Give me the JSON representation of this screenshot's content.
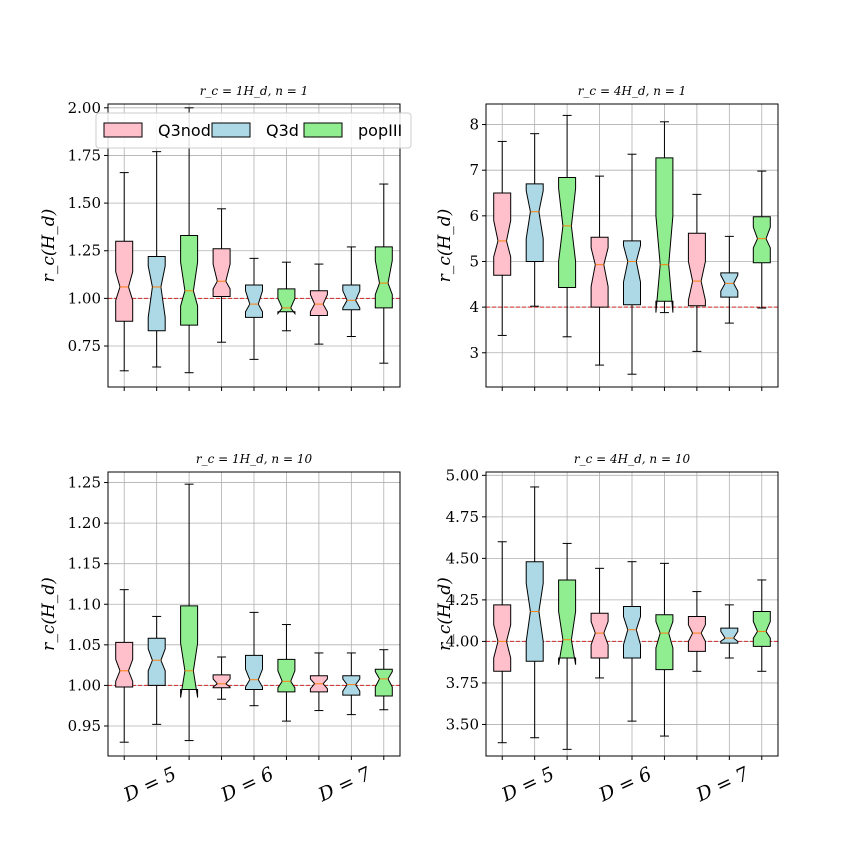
{
  "legend": [
    {
      "label": "Q3nod",
      "color": "#ffc0cb"
    },
    {
      "label": "Q3d",
      "color": "#add8e6"
    },
    {
      "label": "popIII",
      "color": "#90ee90"
    }
  ],
  "x_groups": [
    "D = 5",
    "D = 6",
    "D = 7"
  ],
  "colors": {
    "reference": "#d62728",
    "median": "#ff7f0e",
    "grid": "#b0b0b0"
  },
  "chart_data": [
    {
      "type": "box",
      "title": "r_c = 1H_d, n = 1",
      "ylabel": "r_c(H_d)",
      "reference_y": 1.0,
      "ylim": [
        0.535,
        2.02
      ],
      "yticks": [
        0.75,
        1.0,
        1.25,
        1.5,
        1.75,
        2.0
      ],
      "ytick_labels": [
        "0.75",
        "1.00",
        "1.25",
        "1.50",
        "1.75",
        "2.00"
      ],
      "boxes": [
        {
          "group": "D = 5",
          "series": "Q3nod",
          "wlo": 0.62,
          "q1": 0.88,
          "med": 1.06,
          "q3": 1.3,
          "whi": 1.66,
          "nlo": 0.99,
          "nhi": 1.14
        },
        {
          "group": "D = 5",
          "series": "Q3d",
          "wlo": 0.64,
          "q1": 0.83,
          "med": 1.06,
          "q3": 1.22,
          "whi": 1.77,
          "nlo": 0.9,
          "nhi": 1.17
        },
        {
          "group": "D = 5",
          "series": "popIII",
          "wlo": 0.61,
          "q1": 0.86,
          "med": 1.04,
          "q3": 1.33,
          "whi": 2.0,
          "nlo": 0.96,
          "nhi": 1.19
        },
        {
          "group": "D = 6",
          "series": "Q3nod",
          "wlo": 0.77,
          "q1": 1.01,
          "med": 1.09,
          "q3": 1.26,
          "whi": 1.47,
          "nlo": 1.05,
          "nhi": 1.18
        },
        {
          "group": "D = 6",
          "series": "Q3d",
          "wlo": 0.68,
          "q1": 0.9,
          "med": 0.97,
          "q3": 1.07,
          "whi": 1.21,
          "nlo": 0.93,
          "nhi": 1.04
        },
        {
          "group": "D = 6",
          "series": "popIII",
          "wlo": 0.83,
          "q1": 0.93,
          "med": 0.95,
          "q3": 1.05,
          "whi": 1.19,
          "nlo": 0.92,
          "nhi": 1.0
        },
        {
          "group": "D = 7",
          "series": "Q3nod",
          "wlo": 0.76,
          "q1": 0.91,
          "med": 0.97,
          "q3": 1.04,
          "whi": 1.18,
          "nlo": 0.93,
          "nhi": 1.02
        },
        {
          "group": "D = 7",
          "series": "Q3d",
          "wlo": 0.8,
          "q1": 0.94,
          "med": 0.99,
          "q3": 1.07,
          "whi": 1.27,
          "nlo": 0.95,
          "nhi": 1.04
        },
        {
          "group": "D = 7",
          "series": "popIII",
          "wlo": 0.66,
          "q1": 0.95,
          "med": 1.08,
          "q3": 1.27,
          "whi": 1.6,
          "nlo": 1.02,
          "nhi": 1.2
        }
      ]
    },
    {
      "type": "box",
      "title": "r_c = 4H_d, n = 1",
      "ylabel": "r_c(H_d)",
      "reference_y": 4.0,
      "ylim": [
        2.25,
        8.45
      ],
      "yticks": [
        3,
        4,
        5,
        6,
        7,
        8
      ],
      "ytick_labels": [
        "3",
        "4",
        "5",
        "6",
        "7",
        "8"
      ],
      "boxes": [
        {
          "group": "D = 5",
          "series": "Q3nod",
          "wlo": 3.38,
          "q1": 4.7,
          "med": 5.45,
          "q3": 6.5,
          "whi": 7.63,
          "nlo": 5.1,
          "nhi": 5.9
        },
        {
          "group": "D = 5",
          "series": "Q3d",
          "wlo": 4.02,
          "q1": 5.0,
          "med": 6.09,
          "q3": 6.7,
          "whi": 7.8,
          "nlo": 5.5,
          "nhi": 6.55
        },
        {
          "group": "D = 5",
          "series": "popIII",
          "wlo": 3.35,
          "q1": 4.43,
          "med": 5.78,
          "q3": 6.84,
          "whi": 8.2,
          "nlo": 5.0,
          "nhi": 6.6
        },
        {
          "group": "D = 6",
          "series": "Q3nod",
          "wlo": 2.73,
          "q1": 4.0,
          "med": 4.93,
          "q3": 5.53,
          "whi": 6.87,
          "nlo": 4.45,
          "nhi": 5.3
        },
        {
          "group": "D = 6",
          "series": "Q3d",
          "wlo": 2.53,
          "q1": 4.05,
          "med": 5.0,
          "q3": 5.45,
          "whi": 7.35,
          "nlo": 4.55,
          "nhi": 5.35
        },
        {
          "group": "D = 6",
          "series": "popIII",
          "wlo": 3.88,
          "q1": 4.13,
          "med": 4.93,
          "q3": 7.27,
          "whi": 8.06,
          "nlo": 3.88,
          "nhi": 6.0
        },
        {
          "group": "D = 7",
          "series": "Q3nod",
          "wlo": 3.03,
          "q1": 4.03,
          "med": 4.57,
          "q3": 5.62,
          "whi": 6.47,
          "nlo": 4.15,
          "nhi": 5.0
        },
        {
          "group": "D = 7",
          "series": "Q3d",
          "wlo": 3.65,
          "q1": 4.22,
          "med": 4.52,
          "q3": 4.75,
          "whi": 5.55,
          "nlo": 4.35,
          "nhi": 4.7
        },
        {
          "group": "D = 7",
          "series": "popIII",
          "wlo": 3.98,
          "q1": 4.97,
          "med": 5.5,
          "q3": 5.98,
          "whi": 6.98,
          "nlo": 5.3,
          "nhi": 5.75
        }
      ]
    },
    {
      "type": "box",
      "title": "r_c = 1H_d, n = 10",
      "ylabel": "r_c(H_d)",
      "reference_y": 1.0,
      "ylim": [
        0.913,
        1.263
      ],
      "yticks": [
        0.95,
        1.0,
        1.05,
        1.1,
        1.15,
        1.2,
        1.25
      ],
      "ytick_labels": [
        "0.95",
        "1.00",
        "1.05",
        "1.10",
        "1.15",
        "1.20",
        "1.25"
      ],
      "boxes": [
        {
          "group": "D = 5",
          "series": "Q3nod",
          "wlo": 0.93,
          "q1": 0.998,
          "med": 1.018,
          "q3": 1.053,
          "whi": 1.118,
          "nlo": 1.005,
          "nhi": 1.032
        },
        {
          "group": "D = 5",
          "series": "Q3d",
          "wlo": 0.952,
          "q1": 1.0,
          "med": 1.031,
          "q3": 1.058,
          "whi": 1.085,
          "nlo": 1.018,
          "nhi": 1.045
        },
        {
          "group": "D = 5",
          "series": "popIII",
          "wlo": 0.932,
          "q1": 0.995,
          "med": 1.018,
          "q3": 1.098,
          "whi": 1.248,
          "nlo": 0.985,
          "nhi": 1.052
        },
        {
          "group": "D = 6",
          "series": "Q3nod",
          "wlo": 0.983,
          "q1": 0.997,
          "med": 1.002,
          "q3": 1.013,
          "whi": 1.035,
          "nlo": 0.998,
          "nhi": 1.008
        },
        {
          "group": "D = 6",
          "series": "Q3d",
          "wlo": 0.975,
          "q1": 0.995,
          "med": 1.007,
          "q3": 1.037,
          "whi": 1.09,
          "nlo": 0.998,
          "nhi": 1.02
        },
        {
          "group": "D = 6",
          "series": "popIII",
          "wlo": 0.956,
          "q1": 0.992,
          "med": 1.005,
          "q3": 1.032,
          "whi": 1.075,
          "nlo": 0.997,
          "nhi": 1.018
        },
        {
          "group": "D = 7",
          "series": "Q3nod",
          "wlo": 0.969,
          "q1": 0.992,
          "med": 1.002,
          "q3": 1.012,
          "whi": 1.04,
          "nlo": 0.996,
          "nhi": 1.008
        },
        {
          "group": "D = 7",
          "series": "Q3d",
          "wlo": 0.964,
          "q1": 0.988,
          "med": 1.001,
          "q3": 1.012,
          "whi": 1.04,
          "nlo": 0.993,
          "nhi": 1.008
        },
        {
          "group": "D = 7",
          "series": "popIII",
          "wlo": 0.97,
          "q1": 0.987,
          "med": 1.008,
          "q3": 1.02,
          "whi": 1.044,
          "nlo": 0.998,
          "nhi": 1.017
        }
      ]
    },
    {
      "type": "box",
      "title": "r_c = 4H_d, n = 10",
      "ylabel": "r_c(H_d)",
      "reference_y": 4.0,
      "ylim": [
        3.31,
        5.02
      ],
      "yticks": [
        3.5,
        3.75,
        4.0,
        4.25,
        4.5,
        4.75,
        5.0
      ],
      "ytick_labels": [
        "3.50",
        "3.75",
        "4.00",
        "4.25",
        "4.50",
        "4.75",
        "5.00"
      ],
      "boxes": [
        {
          "group": "D = 5",
          "series": "Q3nod",
          "wlo": 3.39,
          "q1": 3.82,
          "med": 4.0,
          "q3": 4.22,
          "whi": 4.6,
          "nlo": 3.9,
          "nhi": 4.1
        },
        {
          "group": "D = 5",
          "series": "Q3d",
          "wlo": 3.42,
          "q1": 3.88,
          "med": 4.18,
          "q3": 4.48,
          "whi": 4.93,
          "nlo": 4.0,
          "nhi": 4.35
        },
        {
          "group": "D = 5",
          "series": "popIII",
          "wlo": 3.35,
          "q1": 3.9,
          "med": 4.01,
          "q3": 4.37,
          "whi": 4.59,
          "nlo": 3.86,
          "nhi": 4.18
        },
        {
          "group": "D = 6",
          "series": "Q3nod",
          "wlo": 3.78,
          "q1": 3.9,
          "med": 4.05,
          "q3": 4.17,
          "whi": 4.44,
          "nlo": 3.98,
          "nhi": 4.12
        },
        {
          "group": "D = 6",
          "series": "Q3d",
          "wlo": 3.52,
          "q1": 3.9,
          "med": 4.07,
          "q3": 4.21,
          "whi": 4.48,
          "nlo": 3.98,
          "nhi": 4.15
        },
        {
          "group": "D = 6",
          "series": "popIII",
          "wlo": 3.43,
          "q1": 3.83,
          "med": 4.05,
          "q3": 4.16,
          "whi": 4.47,
          "nlo": 3.96,
          "nhi": 4.12
        },
        {
          "group": "D = 7",
          "series": "Q3nod",
          "wlo": 3.82,
          "q1": 3.94,
          "med": 4.05,
          "q3": 4.15,
          "whi": 4.3,
          "nlo": 4.0,
          "nhi": 4.1
        },
        {
          "group": "D = 7",
          "series": "Q3d",
          "wlo": 3.9,
          "q1": 3.99,
          "med": 4.02,
          "q3": 4.08,
          "whi": 4.22,
          "nlo": 4.0,
          "nhi": 4.06
        },
        {
          "group": "D = 7",
          "series": "popIII",
          "wlo": 3.82,
          "q1": 3.97,
          "med": 4.06,
          "q3": 4.18,
          "whi": 4.37,
          "nlo": 4.02,
          "nhi": 4.12
        }
      ]
    }
  ]
}
